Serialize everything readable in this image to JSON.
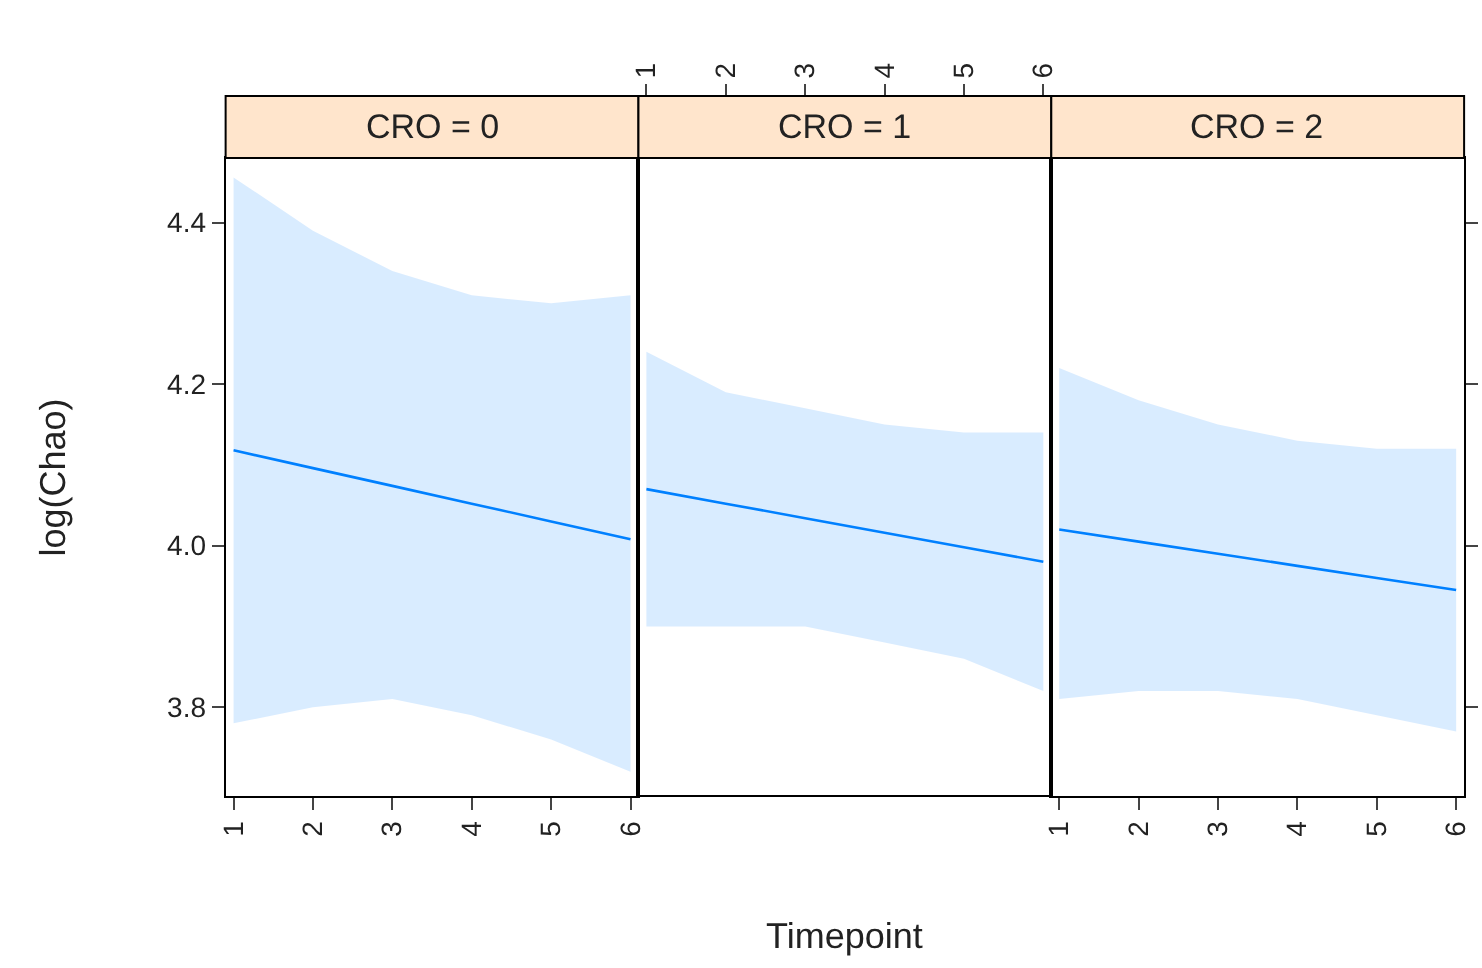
{
  "chart_data": [
    {
      "type": "line",
      "title": "CRO = 0",
      "ylabel": "log(Chao)",
      "x": [
        1,
        2,
        3,
        4,
        5,
        6
      ],
      "xlim": [
        0.9,
        6.1
      ],
      "xticks": [
        1,
        2,
        3,
        4,
        5,
        6
      ],
      "ylim": [
        3.69,
        4.48
      ],
      "yticks": [
        3.8,
        {
          "value": 4.0,
          "label": "4.0"
        },
        4.2,
        4.4
      ],
      "grid": false,
      "series": [
        {
          "color": "#0080ff",
          "values": [
            4.118,
            4.096,
            4.074,
            4.052,
            4.03,
            4.008
          ],
          "lower": [
            3.78,
            3.8,
            3.81,
            3.79,
            3.76,
            3.72
          ],
          "upper": [
            4.456,
            4.39,
            4.34,
            4.31,
            4.3,
            4.31
          ]
        }
      ]
    },
    {
      "type": "line",
      "title": "CRO = 1",
      "xlabel": "Timepoint",
      "x": [
        1,
        2,
        3,
        4,
        5,
        6
      ],
      "xlim": [
        0.9,
        6.1
      ],
      "xticks": [
        1,
        2,
        3,
        4,
        5,
        6
      ],
      "ylim": [
        3.69,
        4.48
      ],
      "yticks": [
        3.8,
        4.0,
        4.2,
        4.4
      ],
      "tick_labels": "x",
      "grid": false,
      "series": [
        {
          "color": "#0080ff",
          "values": [
            4.07,
            4.052,
            4.034,
            4.016,
            3.998,
            3.98
          ],
          "lower": [
            3.9,
            3.9,
            3.9,
            3.88,
            3.86,
            3.82
          ],
          "upper": [
            4.24,
            4.19,
            4.17,
            4.15,
            4.14,
            4.14
          ]
        }
      ]
    },
    {
      "type": "line",
      "title": "CRO = 2",
      "x": [
        1,
        2,
        3,
        4,
        5,
        6
      ],
      "xlim": [
        0.9,
        6.1
      ],
      "xticks": [
        1,
        2,
        3,
        4,
        5,
        6
      ],
      "ylim": [
        3.69,
        4.48
      ],
      "yticks": [
        3.8,
        4.0,
        4.2,
        4.4
      ],
      "tick_labels": "x",
      "grid": false,
      "series": [
        {
          "color": "#0080ff",
          "values": [
            4.02,
            4.005,
            3.99,
            3.975,
            3.96,
            3.945
          ],
          "lower": [
            3.81,
            3.82,
            3.82,
            3.81,
            3.79,
            3.77
          ],
          "upper": [
            4.22,
            4.18,
            4.15,
            4.13,
            4.12,
            4.12
          ]
        }
      ]
    }
  ]
}
